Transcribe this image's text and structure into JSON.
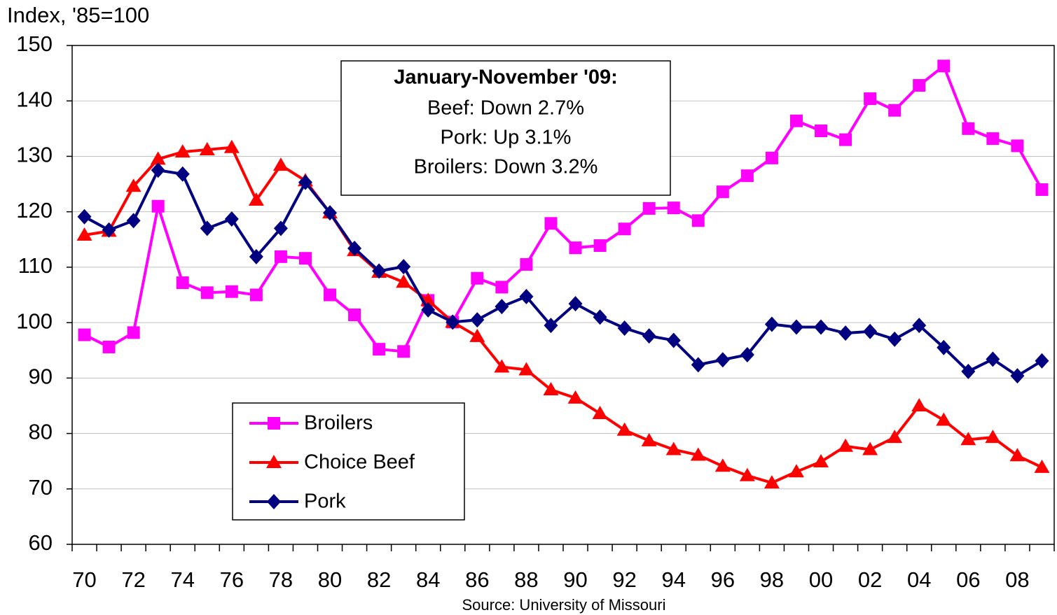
{
  "chart_data": {
    "type": "line",
    "y_axis_title": "Index, '85=100",
    "source": "Source:  University of Missouri",
    "annotation": {
      "title": "January-November '09:",
      "lines": [
        "Beef: Down 2.7%",
        "Pork:  Up 3.1%",
        "Broilers:  Down 3.2%"
      ]
    },
    "categories": [
      "70",
      null,
      "72",
      null,
      "74",
      null,
      "76",
      null,
      "78",
      null,
      "80",
      null,
      "82",
      null,
      "84",
      null,
      "86",
      null,
      "88",
      null,
      "90",
      null,
      "92",
      null,
      "94",
      null,
      "96",
      null,
      "98",
      null,
      "00",
      null,
      "02",
      null,
      "04",
      null,
      "06",
      null,
      "08",
      null
    ],
    "series": [
      {
        "name": "Broilers",
        "color": "#ff00ff",
        "marker": "square",
        "values": [
          97.8,
          95.6,
          98.2,
          121.0,
          107.2,
          105.4,
          105.6,
          105.0,
          111.9,
          111.6,
          105.0,
          101.4,
          95.2,
          94.8,
          104.0,
          100.1,
          108.0,
          106.4,
          110.5,
          117.9,
          113.5,
          113.9,
          116.9,
          120.6,
          120.7,
          118.4,
          123.6,
          126.5,
          129.7,
          136.4,
          134.6,
          133.0,
          140.4,
          138.3,
          142.8,
          146.3,
          135.0,
          133.2,
          131.9,
          124.0
        ]
      },
      {
        "name": "Choice Beef",
        "color": "#ff0000",
        "marker": "triangle",
        "values": [
          115.8,
          116.5,
          124.6,
          129.5,
          130.8,
          131.2,
          131.6,
          122.1,
          128.4,
          125.6,
          119.8,
          113.0,
          109.1,
          107.3,
          104.0,
          100.1,
          97.5,
          92.0,
          91.5,
          87.9,
          86.4,
          83.6,
          80.6,
          78.7,
          77.1,
          76.1,
          74.1,
          72.4,
          71.1,
          73.1,
          74.9,
          77.7,
          77.1,
          79.3,
          85.0,
          82.4,
          78.9,
          79.3,
          76.0,
          73.9
        ]
      },
      {
        "name": "Pork",
        "color": "#000080",
        "marker": "diamond",
        "values": [
          119.1,
          116.7,
          118.4,
          127.5,
          126.8,
          117.0,
          118.7,
          111.9,
          117.0,
          125.3,
          119.8,
          113.4,
          109.3,
          110.1,
          102.3,
          100.1,
          100.5,
          102.9,
          104.7,
          99.5,
          103.4,
          101.0,
          99.0,
          97.6,
          96.8,
          92.4,
          93.3,
          94.2,
          99.7,
          99.2,
          99.2,
          98.1,
          98.4,
          97.0,
          99.5,
          95.5,
          91.2,
          93.4,
          90.4,
          93.1
        ]
      }
    ],
    "ylim": [
      60,
      150
    ],
    "yticks": [
      60,
      70,
      80,
      90,
      100,
      110,
      120,
      130,
      140,
      150
    ],
    "grid": true
  }
}
